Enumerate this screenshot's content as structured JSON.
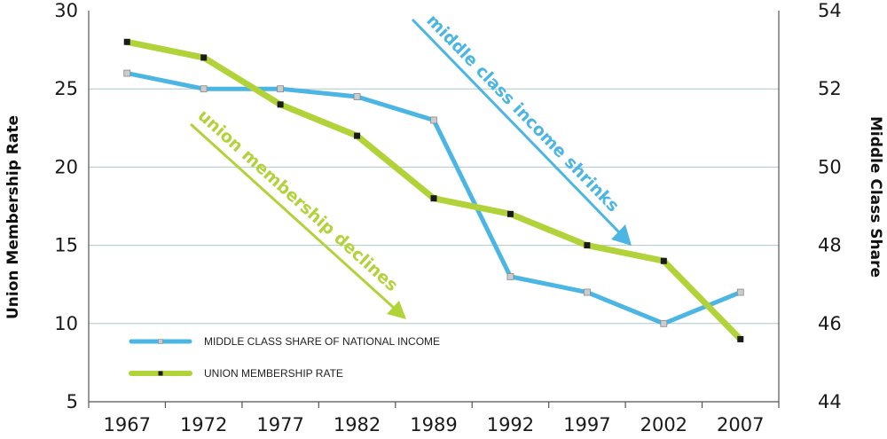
{
  "chart_data": {
    "type": "line",
    "categories": [
      "1967",
      "1972",
      "1977",
      "1982",
      "1989",
      "1992",
      "1997",
      "2002",
      "2007"
    ],
    "series": [
      {
        "name": "MIDDLE CLASS SHARE OF NATIONAL INCOME",
        "axis": "right",
        "color": "#4bb5e3",
        "marker_color": "#cccccc",
        "values": [
          52.4,
          52.0,
          52.0,
          51.8,
          51.2,
          47.2,
          46.8,
          46.0,
          46.8
        ]
      },
      {
        "name": "UNION MEMBERSHIP RATE",
        "axis": "left",
        "color": "#b2d239",
        "marker_color": "#1a1a1a",
        "values": [
          28,
          27,
          24,
          22,
          18,
          17,
          15,
          14,
          9
        ]
      }
    ],
    "ylabel": "Union Membership Rate",
    "ylabel_right": "Middle Class Share",
    "ylim": [
      5,
      30
    ],
    "yticks": [
      "5",
      "10",
      "15",
      "20",
      "25",
      "30"
    ],
    "ylim_right": [
      44,
      54
    ],
    "yticks_right": [
      "44",
      "46",
      "48",
      "50",
      "52",
      "54"
    ],
    "grid": "horizontal",
    "legend_position": "bottom-left",
    "annotations": [
      {
        "text": "middle class income shrinks",
        "color": "#4bb5e3"
      },
      {
        "text": "union membership declines",
        "color": "#b2d239"
      }
    ]
  }
}
